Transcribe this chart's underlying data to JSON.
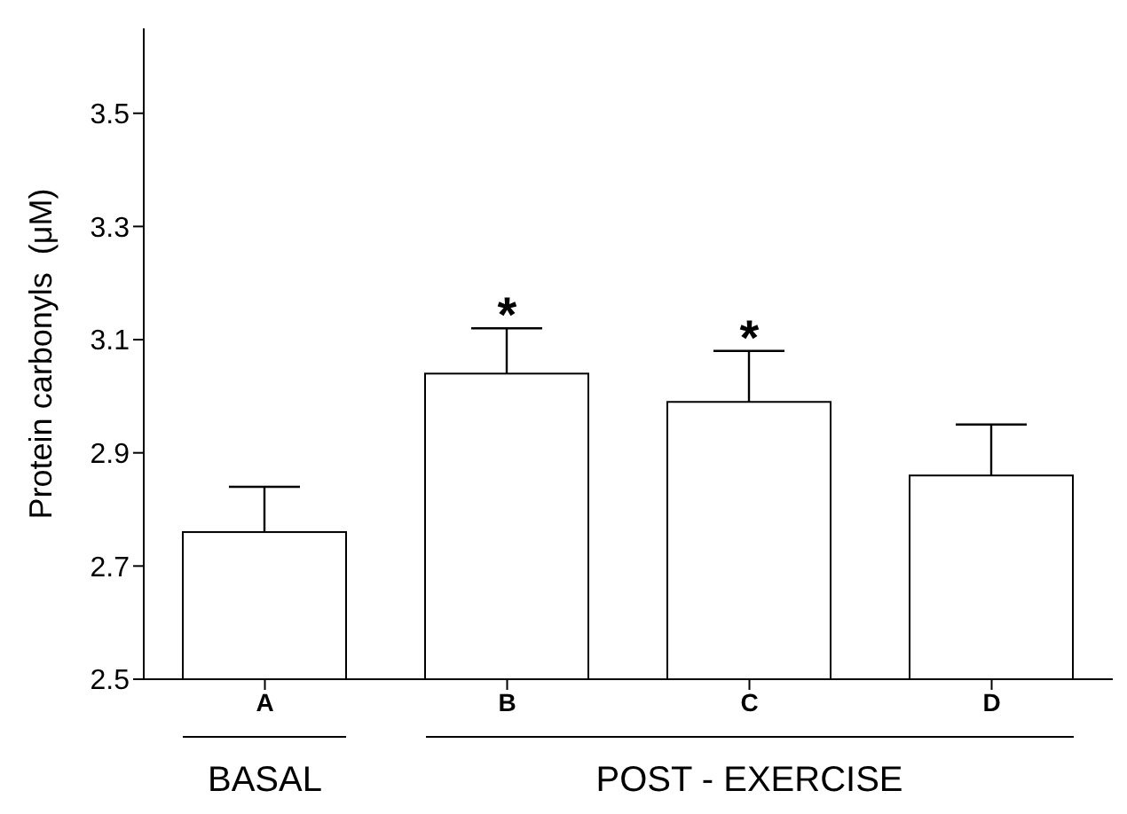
{
  "chart_data": {
    "type": "bar",
    "ylabel": "Protein carbonyls  (μM)",
    "categories": [
      "A",
      "B",
      "C",
      "D"
    ],
    "values": [
      2.76,
      3.04,
      2.99,
      2.86
    ],
    "errors": [
      [
        2.76,
        2.84
      ],
      [
        3.04,
        3.12
      ],
      [
        2.99,
        3.08
      ],
      [
        2.86,
        2.95
      ]
    ],
    "color": "#ffffff",
    "ylim": [
      2.5,
      3.65
    ],
    "yticks": [
      2.5,
      2.7,
      2.9,
      3.1,
      3.3,
      3.5
    ],
    "grid": false,
    "legend": false,
    "annotations": [
      {
        "text": "*",
        "x": "B",
        "y": 3.04
      },
      {
        "text": "*",
        "x": "C",
        "y": 2.99
      },
      "BASAL",
      "POST - EXERCISE"
    ]
  }
}
